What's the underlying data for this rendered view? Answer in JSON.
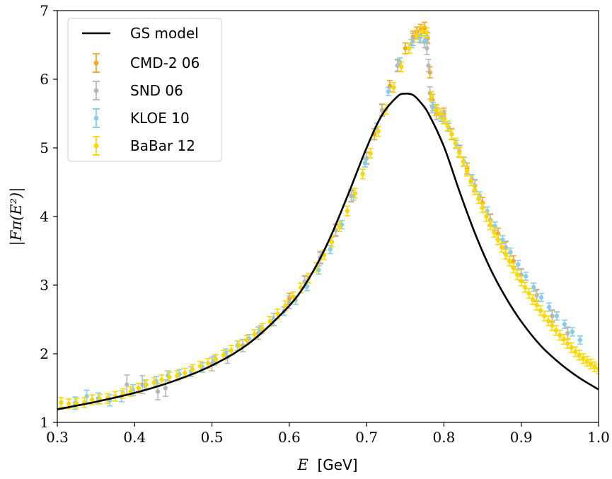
{
  "chart_data": {
    "type": "scatter",
    "xlabel_var": "E",
    "xlabel_unit": "[GeV]",
    "ylabel": "|Fπ(E²)|",
    "xlim": [
      0.3,
      1.0
    ],
    "ylim": [
      1,
      7
    ],
    "xticks": [
      "0.3",
      "0.4",
      "0.5",
      "0.6",
      "0.7",
      "0.8",
      "0.9",
      "1.0"
    ],
    "yticks": [
      "1",
      "2",
      "3",
      "4",
      "5",
      "6",
      "7"
    ],
    "legend_position": "top-left",
    "grid": false,
    "model": {
      "name": "GS model",
      "color": "#000000",
      "x": [
        0.3,
        0.35,
        0.4,
        0.45,
        0.5,
        0.55,
        0.6,
        0.625,
        0.65,
        0.675,
        0.7,
        0.72,
        0.74,
        0.75,
        0.76,
        0.77,
        0.78,
        0.8,
        0.82,
        0.84,
        0.86,
        0.88,
        0.9,
        0.925,
        0.95,
        0.975,
        1.0
      ],
      "y": [
        1.19,
        1.3,
        1.43,
        1.6,
        1.83,
        2.17,
        2.7,
        3.09,
        3.62,
        4.29,
        5.0,
        5.48,
        5.75,
        5.79,
        5.77,
        5.66,
        5.5,
        5.02,
        4.37,
        3.76,
        3.24,
        2.82,
        2.47,
        2.12,
        1.86,
        1.65,
        1.48
      ]
    },
    "series": [
      {
        "name": "CMD-2 06",
        "color": "#f5a623",
        "x": [
          0.6,
          0.62,
          0.64,
          0.66,
          0.68,
          0.7,
          0.71,
          0.72,
          0.73,
          0.74,
          0.75,
          0.76,
          0.765,
          0.77,
          0.775,
          0.779,
          0.782,
          0.785,
          0.79,
          0.8,
          0.81,
          0.82,
          0.83,
          0.84,
          0.85,
          0.86,
          0.87,
          0.88,
          0.89,
          0.9,
          0.92,
          0.94,
          0.96
        ],
        "y": [
          2.8,
          3.05,
          3.4,
          3.8,
          4.3,
          4.85,
          5.2,
          5.55,
          5.9,
          6.2,
          6.45,
          6.62,
          6.68,
          6.72,
          6.75,
          6.6,
          6.1,
          5.7,
          5.55,
          5.5,
          5.2,
          4.95,
          4.7,
          4.45,
          4.2,
          3.95,
          3.75,
          3.55,
          3.35,
          3.15,
          2.85,
          2.55,
          2.3
        ],
        "err": [
          0.08,
          0.08,
          0.08,
          0.08,
          0.08,
          0.08,
          0.08,
          0.08,
          0.08,
          0.08,
          0.08,
          0.08,
          0.08,
          0.08,
          0.08,
          0.08,
          0.08,
          0.08,
          0.08,
          0.08,
          0.08,
          0.08,
          0.08,
          0.08,
          0.08,
          0.08,
          0.08,
          0.08,
          0.08,
          0.08,
          0.08,
          0.08,
          0.08
        ]
      },
      {
        "name": "SND 06",
        "color": "#b8b8b8",
        "x": [
          0.39,
          0.41,
          0.43,
          0.44,
          0.5,
          0.52,
          0.54,
          0.56,
          0.58,
          0.6,
          0.62,
          0.64,
          0.66,
          0.68,
          0.7,
          0.72,
          0.74,
          0.76,
          0.77,
          0.775,
          0.778,
          0.78,
          0.782,
          0.785,
          0.79,
          0.8,
          0.82,
          0.84,
          0.86,
          0.88,
          0.9,
          0.92,
          0.94,
          0.96
        ],
        "y": [
          1.55,
          1.55,
          1.45,
          1.5,
          1.85,
          1.95,
          2.12,
          2.3,
          2.5,
          2.75,
          3.05,
          3.4,
          3.8,
          4.3,
          4.85,
          5.55,
          6.2,
          6.58,
          6.62,
          6.55,
          6.45,
          6.2,
          5.8,
          5.6,
          5.5,
          5.45,
          4.95,
          4.45,
          3.95,
          3.55,
          3.15,
          2.85,
          2.55,
          2.3
        ],
        "err": [
          0.14,
          0.13,
          0.12,
          0.12,
          0.1,
          0.09,
          0.09,
          0.09,
          0.09,
          0.09,
          0.09,
          0.09,
          0.09,
          0.09,
          0.09,
          0.09,
          0.09,
          0.09,
          0.09,
          0.09,
          0.09,
          0.09,
          0.09,
          0.09,
          0.09,
          0.09,
          0.09,
          0.09,
          0.09,
          0.09,
          0.09,
          0.09,
          0.09,
          0.09
        ]
      },
      {
        "name": "KLOE 10",
        "color": "#87ceeb",
        "x": [
          0.323,
          0.338,
          0.353,
          0.368,
          0.383,
          0.398,
          0.413,
          0.428,
          0.443,
          0.458,
          0.473,
          0.488,
          0.503,
          0.518,
          0.533,
          0.548,
          0.563,
          0.578,
          0.593,
          0.608,
          0.623,
          0.638,
          0.653,
          0.668,
          0.683,
          0.698,
          0.713,
          0.728,
          0.743,
          0.758,
          0.768,
          0.776,
          0.786,
          0.796,
          0.806,
          0.816,
          0.826,
          0.836,
          0.846,
          0.856,
          0.866,
          0.876,
          0.886,
          0.896,
          0.906,
          0.916,
          0.926,
          0.936,
          0.946,
          0.956,
          0.966,
          0.976
        ],
        "y": [
          1.28,
          1.38,
          1.35,
          1.32,
          1.38,
          1.47,
          1.54,
          1.6,
          1.68,
          1.7,
          1.74,
          1.8,
          1.9,
          2.0,
          2.12,
          2.22,
          2.35,
          2.48,
          2.62,
          2.78,
          2.98,
          3.22,
          3.52,
          3.88,
          4.3,
          4.78,
          5.3,
          5.82,
          6.25,
          6.52,
          6.6,
          6.58,
          5.6,
          5.45,
          5.3,
          5.05,
          4.8,
          4.55,
          4.3,
          4.08,
          3.86,
          3.66,
          3.48,
          3.3,
          3.13,
          2.97,
          2.82,
          2.68,
          2.55,
          2.43,
          2.32,
          2.2
        ],
        "err": [
          0.09,
          0.09,
          0.08,
          0.08,
          0.08,
          0.08,
          0.07,
          0.07,
          0.07,
          0.07,
          0.07,
          0.07,
          0.07,
          0.07,
          0.07,
          0.06,
          0.06,
          0.06,
          0.06,
          0.06,
          0.06,
          0.06,
          0.06,
          0.06,
          0.06,
          0.06,
          0.06,
          0.06,
          0.06,
          0.06,
          0.06,
          0.06,
          0.06,
          0.06,
          0.06,
          0.06,
          0.06,
          0.06,
          0.06,
          0.06,
          0.06,
          0.06,
          0.06,
          0.06,
          0.06,
          0.06,
          0.06,
          0.06,
          0.06,
          0.06,
          0.06,
          0.06
        ]
      },
      {
        "name": "BaBar 12",
        "color": "#ffd700",
        "x": [
          0.305,
          0.315,
          0.325,
          0.335,
          0.345,
          0.355,
          0.365,
          0.375,
          0.385,
          0.395,
          0.405,
          0.415,
          0.425,
          0.435,
          0.445,
          0.455,
          0.465,
          0.475,
          0.485,
          0.495,
          0.505,
          0.515,
          0.525,
          0.535,
          0.545,
          0.555,
          0.565,
          0.575,
          0.585,
          0.595,
          0.605,
          0.615,
          0.625,
          0.635,
          0.645,
          0.655,
          0.665,
          0.675,
          0.685,
          0.695,
          0.705,
          0.715,
          0.725,
          0.735,
          0.745,
          0.755,
          0.765,
          0.772,
          0.778,
          0.784,
          0.79,
          0.795,
          0.8,
          0.805,
          0.81,
          0.815,
          0.82,
          0.825,
          0.83,
          0.835,
          0.84,
          0.845,
          0.85,
          0.855,
          0.86,
          0.865,
          0.87,
          0.875,
          0.88,
          0.885,
          0.89,
          0.895,
          0.9,
          0.905,
          0.91,
          0.915,
          0.92,
          0.925,
          0.93,
          0.935,
          0.94,
          0.945,
          0.95,
          0.955,
          0.96,
          0.965,
          0.97,
          0.975,
          0.98,
          0.985,
          0.99,
          0.995,
          1.0
        ],
        "y": [
          1.29,
          1.27,
          1.28,
          1.29,
          1.33,
          1.34,
          1.35,
          1.38,
          1.42,
          1.45,
          1.5,
          1.55,
          1.58,
          1.62,
          1.66,
          1.68,
          1.72,
          1.77,
          1.82,
          1.86,
          1.92,
          1.98,
          2.05,
          2.12,
          2.2,
          2.28,
          2.37,
          2.47,
          2.58,
          2.7,
          2.83,
          2.96,
          3.1,
          3.26,
          3.44,
          3.63,
          3.85,
          4.08,
          4.34,
          4.62,
          4.92,
          5.24,
          5.56,
          5.88,
          6.18,
          6.45,
          6.65,
          6.7,
          6.68,
          5.75,
          5.55,
          5.5,
          5.42,
          5.32,
          5.2,
          5.07,
          4.93,
          4.8,
          4.66,
          4.52,
          4.39,
          4.26,
          4.13,
          4.0,
          3.88,
          3.77,
          3.66,
          3.55,
          3.45,
          3.35,
          3.25,
          3.15,
          3.06,
          2.97,
          2.88,
          2.79,
          2.71,
          2.63,
          2.55,
          2.48,
          2.41,
          2.34,
          2.27,
          2.21,
          2.15,
          2.09,
          2.03,
          1.98,
          1.93,
          1.89,
          1.85,
          1.81,
          1.78
        ],
        "err": [
          0.07,
          0.07,
          0.07,
          0.07,
          0.07,
          0.07,
          0.07,
          0.07,
          0.07,
          0.07,
          0.07,
          0.07,
          0.07,
          0.07,
          0.07,
          0.07,
          0.07,
          0.07,
          0.07,
          0.07,
          0.07,
          0.07,
          0.07,
          0.07,
          0.07,
          0.07,
          0.07,
          0.07,
          0.07,
          0.07,
          0.07,
          0.07,
          0.07,
          0.07,
          0.07,
          0.07,
          0.07,
          0.07,
          0.07,
          0.07,
          0.07,
          0.07,
          0.07,
          0.07,
          0.07,
          0.07,
          0.07,
          0.07,
          0.07,
          0.07,
          0.07,
          0.07,
          0.07,
          0.07,
          0.07,
          0.07,
          0.07,
          0.07,
          0.07,
          0.07,
          0.07,
          0.07,
          0.07,
          0.07,
          0.07,
          0.07,
          0.07,
          0.07,
          0.07,
          0.07,
          0.07,
          0.07,
          0.07,
          0.07,
          0.07,
          0.07,
          0.07,
          0.07,
          0.07,
          0.07,
          0.07,
          0.07,
          0.07,
          0.07,
          0.07,
          0.07,
          0.07,
          0.07,
          0.07,
          0.07,
          0.07,
          0.07,
          0.07
        ]
      }
    ]
  }
}
